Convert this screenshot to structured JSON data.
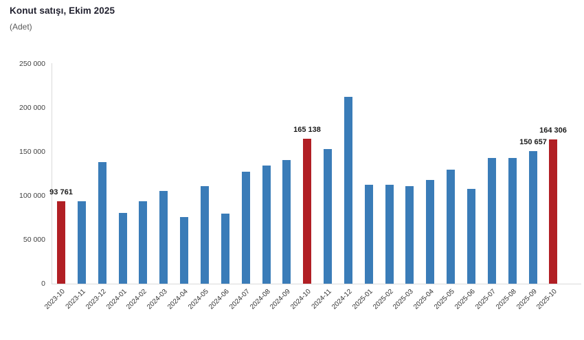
{
  "header": {
    "title": "Konut satışı, Ekim 2025",
    "unit": "(Adet)"
  },
  "colors": {
    "bar_default": "#3A7CB8",
    "bar_highlight": "#B11F24",
    "axis_line": "#D9D9D9",
    "tick_text": "#404040",
    "data_label_text": "#1A1A1A",
    "title_text": "#21212F",
    "subtitle_text": "#595959"
  },
  "chart_data": {
    "type": "bar",
    "title": "Konut satışı, Ekim 2025",
    "subtitle": "(Adet)",
    "xlabel": "",
    "ylabel": "Adet",
    "ylim": [
      0,
      250000
    ],
    "grid": false,
    "legend": false,
    "y_ticks": [
      "0",
      "50 000",
      "100 000",
      "150 000",
      "200 000",
      "250 000"
    ],
    "categories": [
      "2023-10",
      "2023-11",
      "2023-12",
      "2024-01",
      "2024-02",
      "2024-03",
      "2024-04",
      "2024-05",
      "2024-06",
      "2024-07",
      "2024-08",
      "2024-09",
      "2024-10",
      "2024-11",
      "2024-12",
      "2025-01",
      "2025-02",
      "2025-03",
      "2025-04",
      "2025-05",
      "2025-06",
      "2025-07",
      "2025-08",
      "2025-09",
      "2025-10"
    ],
    "values": [
      93761,
      93577,
      138577,
      80308,
      93902,
      105476,
      75569,
      110588,
      79313,
      127088,
      134155,
      140919,
      165138,
      153014,
      212637,
      112173,
      112818,
      110795,
      118359,
      130025,
      107723,
      142858,
      143319,
      150657,
      164306
    ],
    "highlighted_categories": [
      "2023-10",
      "2024-10",
      "2025-10"
    ],
    "data_labels": [
      {
        "category": "2023-10",
        "text": "93 761"
      },
      {
        "category": "2024-10",
        "text": "165 138"
      },
      {
        "category": "2025-09",
        "text": "150 657"
      },
      {
        "category": "2025-10",
        "text": "164 306"
      }
    ]
  }
}
